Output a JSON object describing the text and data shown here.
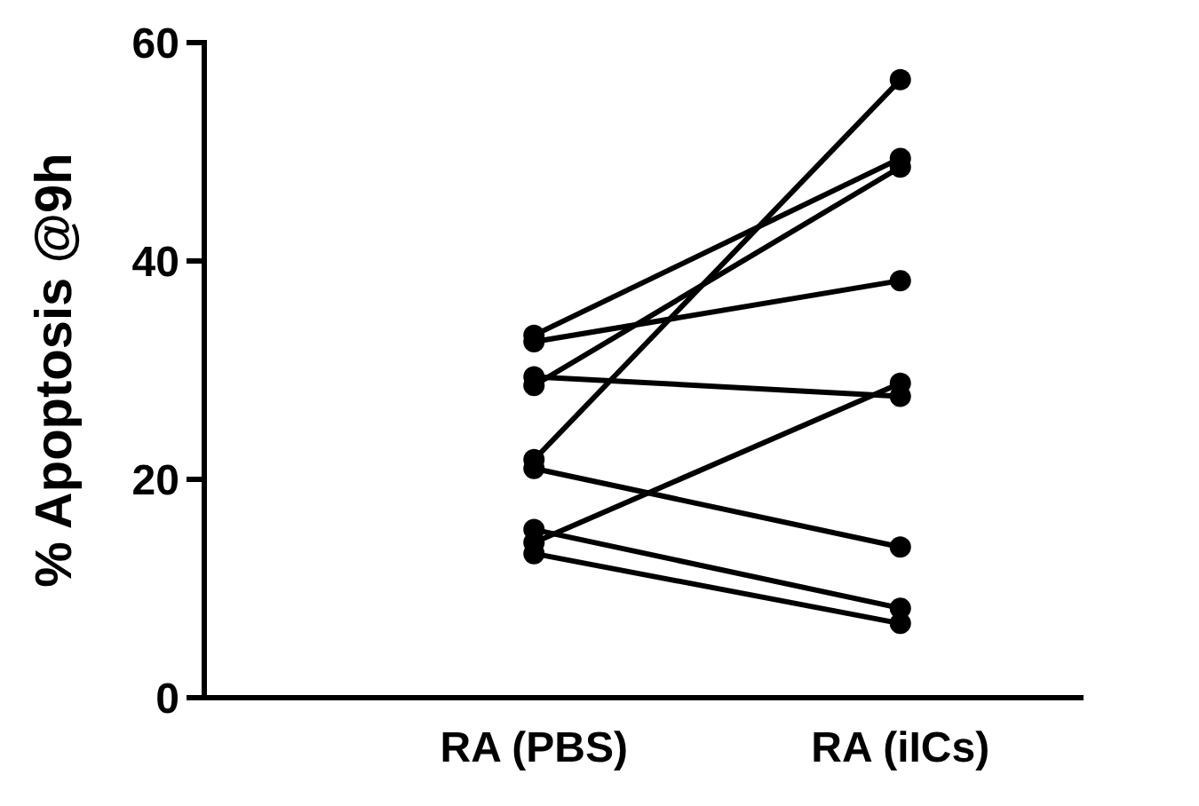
{
  "chart_data": {
    "type": "line",
    "ylabel": "% Apoptosis @9h",
    "categories": [
      "RA (PBS)",
      "RA (iICs)"
    ],
    "ylim": [
      0,
      60
    ],
    "yticks": [
      0,
      20,
      40,
      60
    ],
    "marker": "circle",
    "line_style": "solid",
    "grid": false,
    "series": [
      {
        "color": "#000000",
        "values": [
          33.2,
          49.4
        ]
      },
      {
        "color": "#000000",
        "values": [
          32.6,
          38.2
        ]
      },
      {
        "color": "#000000",
        "values": [
          29.4,
          27.6
        ]
      },
      {
        "color": "#000000",
        "values": [
          28.6,
          48.6
        ]
      },
      {
        "color": "#000000",
        "values": [
          21.8,
          56.6
        ]
      },
      {
        "color": "#000000",
        "values": [
          21.0,
          13.8
        ]
      },
      {
        "color": "#000000",
        "values": [
          15.4,
          8.2
        ]
      },
      {
        "color": "#000000",
        "values": [
          14.2,
          28.8
        ]
      },
      {
        "color": "#000000",
        "values": [
          13.2,
          6.8
        ]
      }
    ]
  }
}
